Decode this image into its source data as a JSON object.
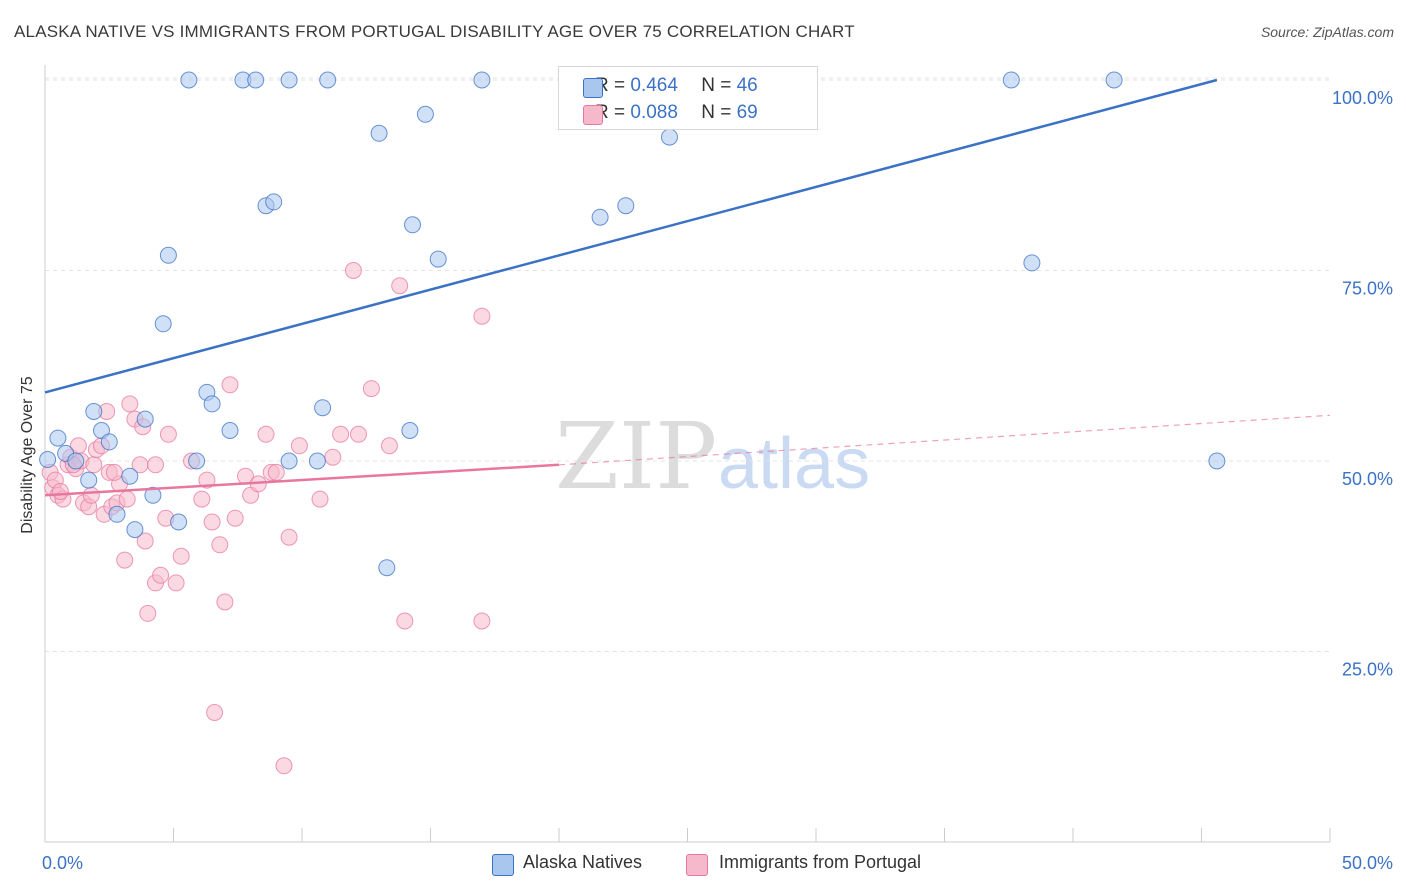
{
  "title": "ALASKA NATIVE VS IMMIGRANTS FROM PORTUGAL DISABILITY AGE OVER 75 CORRELATION CHART",
  "source": "Source: ZipAtlas.com",
  "watermark": {
    "zip": "ZIP",
    "atlas": "atlas"
  },
  "colors": {
    "blue": "#3b72c6",
    "blue_fill": "#a9c6ef",
    "pink": "#e8779f",
    "pink_fill": "#f6b9cc",
    "grid": "#e3e3e3",
    "axis_text": "#3b72c6"
  },
  "legend_top": [
    {
      "r_label": "R = ",
      "r_value": "0.464",
      "n_label": "N = ",
      "n_value": "46"
    },
    {
      "r_label": "R = ",
      "r_value": "0.088",
      "n_label": "N = ",
      "n_value": "69"
    }
  ],
  "chart_data": {
    "type": "scatter",
    "title": "ALASKA NATIVE VS IMMIGRANTS FROM PORTUGAL DISABILITY AGE OVER 75 CORRELATION CHART",
    "xlabel": "",
    "ylabel": "Disability Age Over 75",
    "xlim": [
      0,
      50
    ],
    "ylim": [
      0,
      105
    ],
    "x_tick_labels": [
      "0.0%",
      "50.0%"
    ],
    "y_ticks": [
      25,
      50,
      75,
      100
    ],
    "y_tick_labels": [
      "25.0%",
      "50.0%",
      "75.0%",
      "100.0%"
    ],
    "grid": true,
    "legend_position": "bottom",
    "series": [
      {
        "name": "Alaska Natives",
        "r": 0.464,
        "n": 46,
        "trend": [
          [
            0.0,
            59.0
          ],
          [
            45.6,
            100.0
          ]
        ],
        "points": [
          [
            0.1,
            50.2
          ],
          [
            0.5,
            53.0
          ],
          [
            0.8,
            51.0
          ],
          [
            1.2,
            50.0
          ],
          [
            1.7,
            47.5
          ],
          [
            1.9,
            56.5
          ],
          [
            2.2,
            54.0
          ],
          [
            2.5,
            52.5
          ],
          [
            2.8,
            43.0
          ],
          [
            3.3,
            48.0
          ],
          [
            3.5,
            41.0
          ],
          [
            3.9,
            55.5
          ],
          [
            4.2,
            45.5
          ],
          [
            4.8,
            77.0
          ],
          [
            4.6,
            68.0
          ],
          [
            5.2,
            42.0
          ],
          [
            5.6,
            100.0
          ],
          [
            5.9,
            50.0
          ],
          [
            6.3,
            59.0
          ],
          [
            6.5,
            57.5
          ],
          [
            7.2,
            54.0
          ],
          [
            7.7,
            100.0
          ],
          [
            8.2,
            100.0
          ],
          [
            8.6,
            83.5
          ],
          [
            8.9,
            84.0
          ],
          [
            9.5,
            100.0
          ],
          [
            9.5,
            50.0
          ],
          [
            10.6,
            50.0
          ],
          [
            10.8,
            57.0
          ],
          [
            11.0,
            100.0
          ],
          [
            13.0,
            93.0
          ],
          [
            13.3,
            36.0
          ],
          [
            14.2,
            54.0
          ],
          [
            14.3,
            81.0
          ],
          [
            14.8,
            95.5
          ],
          [
            15.3,
            76.5
          ],
          [
            17.0,
            100.0
          ],
          [
            20.6,
            100.0
          ],
          [
            21.6,
            82.0
          ],
          [
            22.6,
            83.5
          ],
          [
            24.3,
            92.5
          ],
          [
            24.6,
            100.0
          ],
          [
            37.6,
            100.0
          ],
          [
            38.4,
            76.0
          ],
          [
            41.6,
            100.0
          ],
          [
            45.6,
            50.0
          ]
        ]
      },
      {
        "name": "Immigrants from Portugal",
        "r": 0.088,
        "n": 69,
        "trend": [
          [
            0.0,
            45.5
          ],
          [
            20.0,
            49.5
          ]
        ],
        "trend_dashed": [
          [
            20.0,
            49.5
          ],
          [
            50.0,
            56.0
          ]
        ],
        "points": [
          [
            0.2,
            48.5
          ],
          [
            0.3,
            46.5
          ],
          [
            0.4,
            47.5
          ],
          [
            0.5,
            45.5
          ],
          [
            0.7,
            45.0
          ],
          [
            0.9,
            49.5
          ],
          [
            1.0,
            50.5
          ],
          [
            1.2,
            49.0
          ],
          [
            1.3,
            52.0
          ],
          [
            1.4,
            50.0
          ],
          [
            1.5,
            44.5
          ],
          [
            1.7,
            44.0
          ],
          [
            1.8,
            45.5
          ],
          [
            1.9,
            49.5
          ],
          [
            2.0,
            51.5
          ],
          [
            2.2,
            52.0
          ],
          [
            2.3,
            43.0
          ],
          [
            2.4,
            56.5
          ],
          [
            2.5,
            48.5
          ],
          [
            2.6,
            44.0
          ],
          [
            2.8,
            44.5
          ],
          [
            2.9,
            47.0
          ],
          [
            3.2,
            45.0
          ],
          [
            3.1,
            37.0
          ],
          [
            3.3,
            57.5
          ],
          [
            3.5,
            55.5
          ],
          [
            3.7,
            49.5
          ],
          [
            3.8,
            54.5
          ],
          [
            3.9,
            39.5
          ],
          [
            4.0,
            30.0
          ],
          [
            4.3,
            49.5
          ],
          [
            4.3,
            34.0
          ],
          [
            4.5,
            35.0
          ],
          [
            4.7,
            42.5
          ],
          [
            4.8,
            53.5
          ],
          [
            5.1,
            34.0
          ],
          [
            5.3,
            37.5
          ],
          [
            5.7,
            50.0
          ],
          [
            6.1,
            45.0
          ],
          [
            6.3,
            47.5
          ],
          [
            6.5,
            42.0
          ],
          [
            6.6,
            17.0
          ],
          [
            6.8,
            39.0
          ],
          [
            7.0,
            31.5
          ],
          [
            7.2,
            60.0
          ],
          [
            7.4,
            42.5
          ],
          [
            7.8,
            48.0
          ],
          [
            8.0,
            45.5
          ],
          [
            8.3,
            47.0
          ],
          [
            8.6,
            53.5
          ],
          [
            8.8,
            48.5
          ],
          [
            9.0,
            48.5
          ],
          [
            9.3,
            10.0
          ],
          [
            9.5,
            40.0
          ],
          [
            9.9,
            52.0
          ],
          [
            10.7,
            45.0
          ],
          [
            11.2,
            50.5
          ],
          [
            11.5,
            53.5
          ],
          [
            12.0,
            75.0
          ],
          [
            12.2,
            53.5
          ],
          [
            12.7,
            59.5
          ],
          [
            13.4,
            52.0
          ],
          [
            13.8,
            73.0
          ],
          [
            14.0,
            29.0
          ],
          [
            17.0,
            69.0
          ],
          [
            17.0,
            29.0
          ],
          [
            0.6,
            46.0
          ],
          [
            1.1,
            49.5
          ],
          [
            2.7,
            48.5
          ]
        ]
      }
    ]
  },
  "legend_bottom": [
    {
      "label": "Alaska Natives"
    },
    {
      "label": "Immigrants from Portugal"
    }
  ]
}
